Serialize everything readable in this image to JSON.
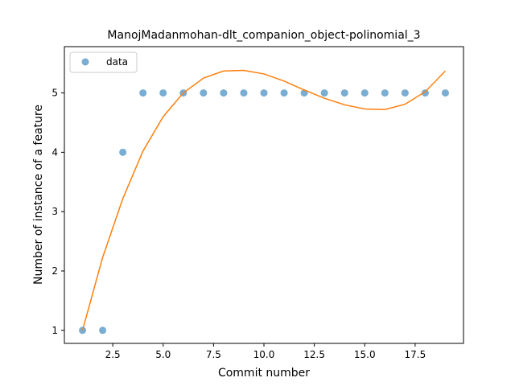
{
  "chart_data": {
    "type": "scatter",
    "title": "ManojMadanmohan-dlt_companion_object-polinomial_3",
    "xlabel": "Commit number",
    "ylabel": "Number of instance of a feature",
    "xlim": [
      0.1,
      19.9
    ],
    "ylim": [
      0.78,
      5.78
    ],
    "xticks": [
      2.5,
      5.0,
      7.5,
      10.0,
      12.5,
      15.0,
      17.5
    ],
    "xtick_labels": [
      "2.5",
      "5.0",
      "7.5",
      "10.0",
      "12.5",
      "15.0",
      "17.5"
    ],
    "yticks": [
      1,
      2,
      3,
      4,
      5
    ],
    "ytick_labels": [
      "1",
      "2",
      "3",
      "4",
      "5"
    ],
    "grid": false,
    "legend_position": "top-left",
    "series": [
      {
        "name": "data",
        "kind": "points",
        "color": "#1f77b4",
        "x": [
          1,
          2,
          3,
          4,
          5,
          6,
          7,
          8,
          9,
          10,
          11,
          12,
          13,
          14,
          15,
          16,
          17,
          18,
          19
        ],
        "y": [
          1,
          1,
          4,
          5,
          5,
          5,
          5,
          5,
          5,
          5,
          5,
          5,
          5,
          5,
          5,
          5,
          5,
          5,
          5
        ]
      },
      {
        "kind": "line",
        "color": "#ff7f0e",
        "x": [
          1,
          2,
          3,
          4,
          5,
          6,
          7,
          8,
          9,
          10,
          11,
          12,
          13,
          14,
          15,
          16,
          17,
          18,
          19
        ],
        "y": [
          1.0,
          2.23,
          3.22,
          4.02,
          4.6,
          5.0,
          5.25,
          5.37,
          5.38,
          5.32,
          5.2,
          5.05,
          4.91,
          4.8,
          4.73,
          4.72,
          4.81,
          5.02,
          5.37
        ]
      }
    ]
  }
}
